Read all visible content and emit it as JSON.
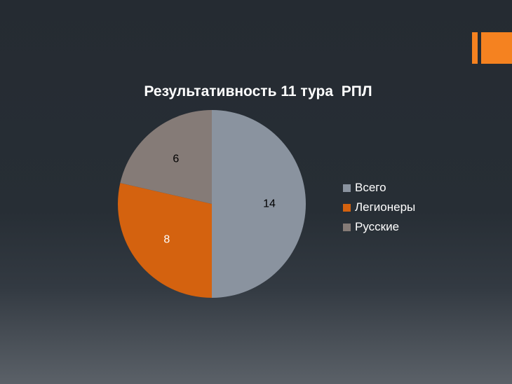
{
  "theme": {
    "accent": "#f58220"
  },
  "chart_data": {
    "type": "pie",
    "title": "Результативность 11 тура  РПЛ",
    "legend_position": "right",
    "start_angle_deg": 0,
    "direction": "clockwise",
    "slices": [
      {
        "name": "Всего",
        "value": 14,
        "label": "14",
        "color": "#8a939f",
        "label_color": "#000000"
      },
      {
        "name": "Легионеры",
        "value": 8,
        "label": "8",
        "color": "#d4620f",
        "label_color": "#ffffff"
      },
      {
        "name": "Русские",
        "value": 6,
        "label": "6",
        "color": "#857b77",
        "label_color": "#000000"
      }
    ]
  }
}
